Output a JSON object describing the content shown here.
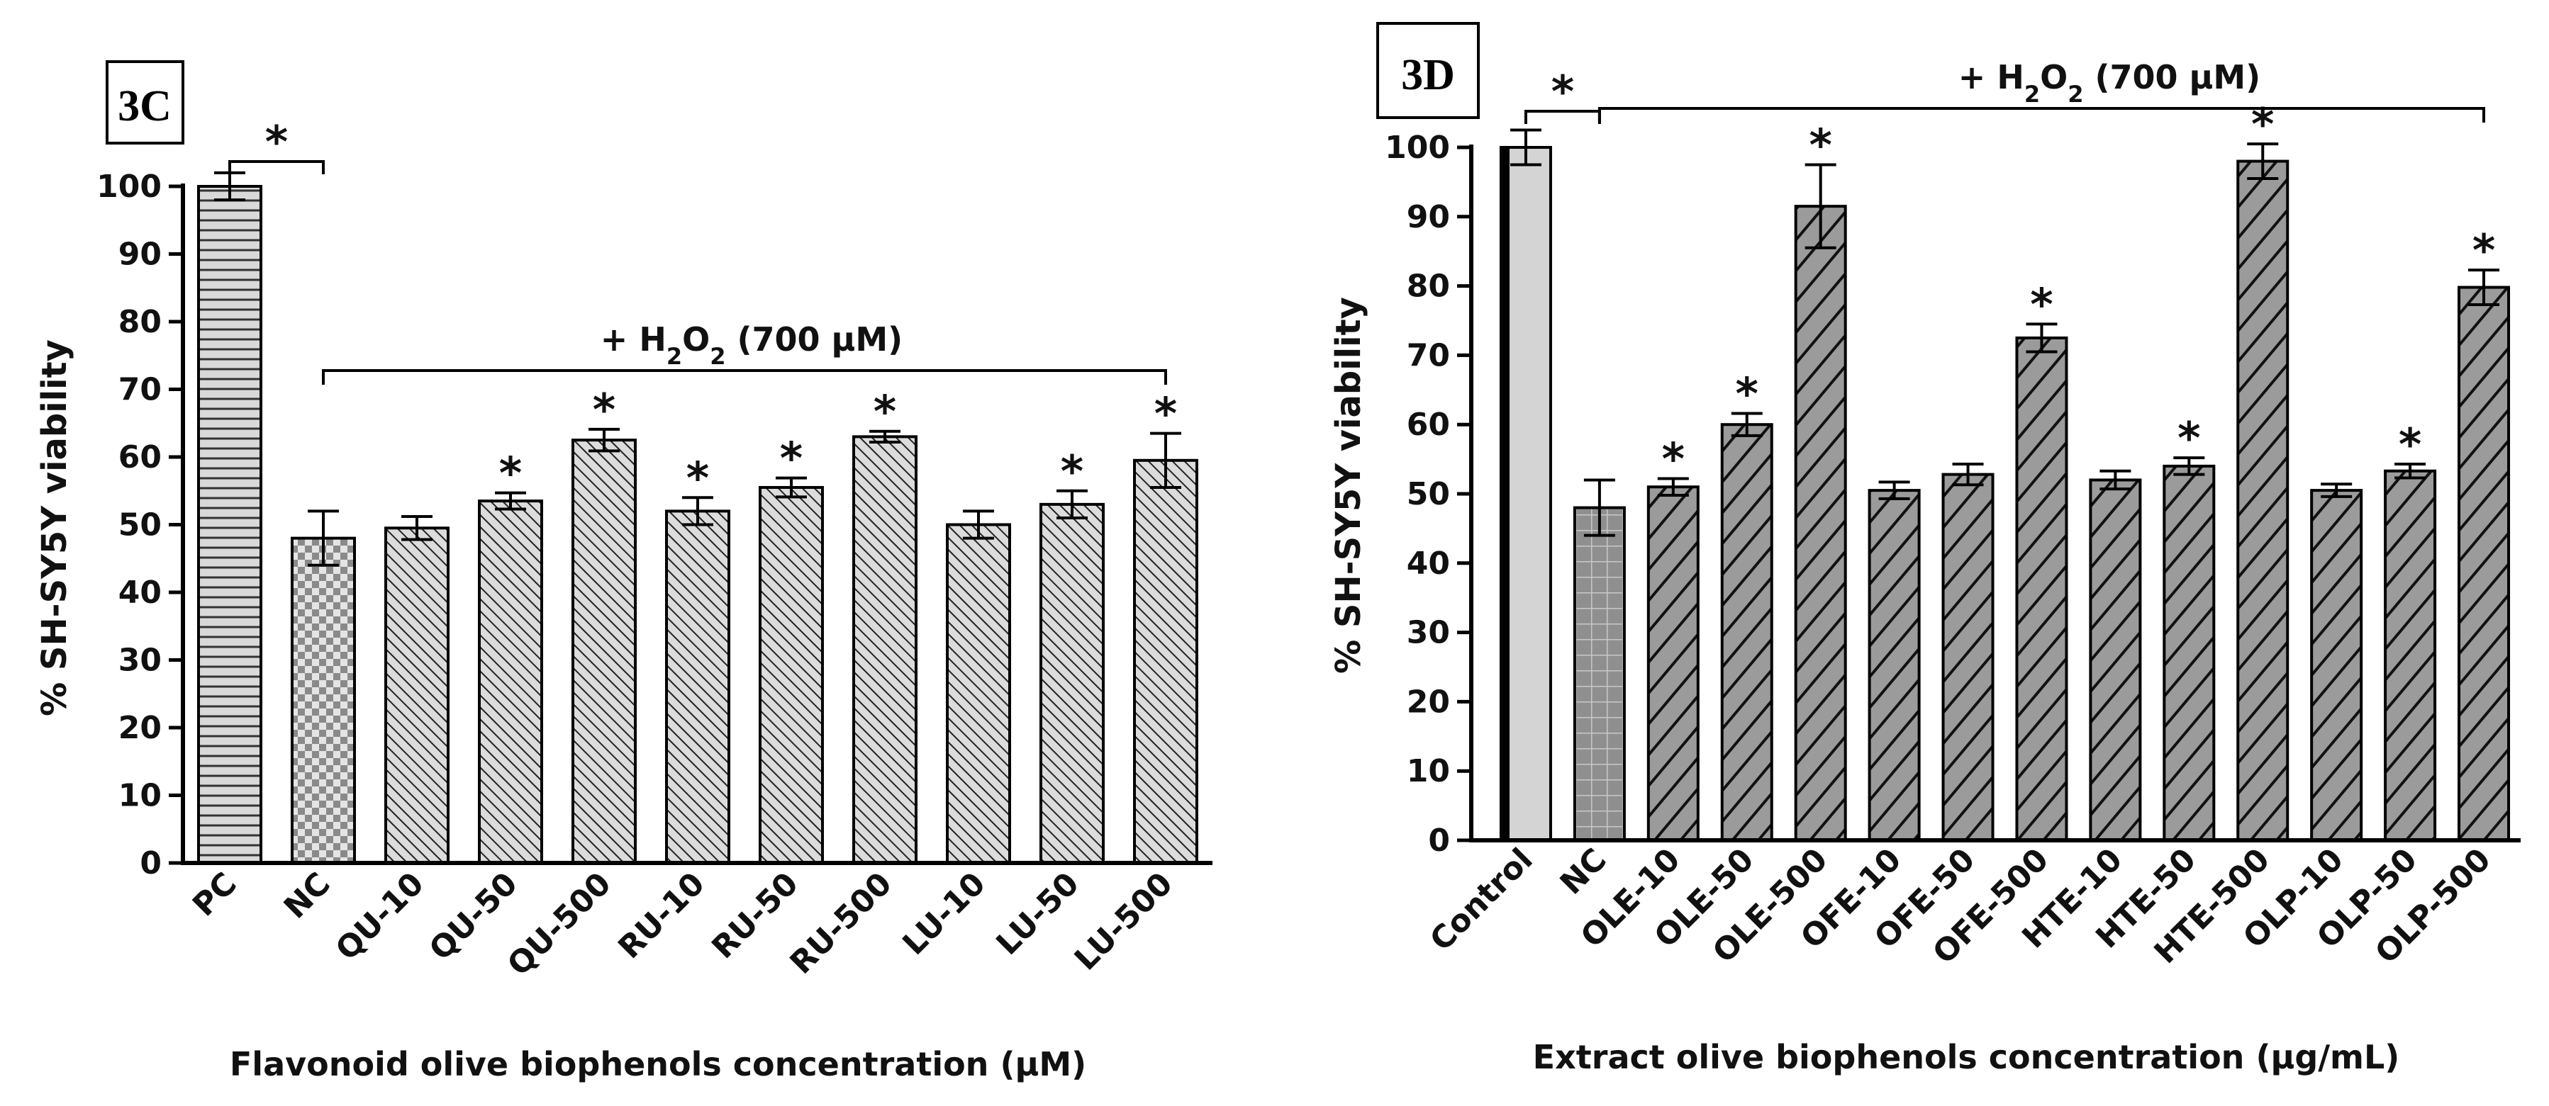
{
  "chart_data": [
    {
      "type": "bar",
      "panel": "3C",
      "title": "",
      "xlabel": "Flavonoid olive biophenols concentration (µM)",
      "ylabel": "% SH-SY5Y viability",
      "ylim": [
        0,
        100
      ],
      "yticks": [
        "0",
        "10",
        "20",
        "30",
        "40",
        "50",
        "60",
        "70",
        "80",
        "90",
        "100"
      ],
      "treatment_label_main": "+ H",
      "treatment_label_sub": "2",
      "treatment_label_o": "O",
      "treatment_label_rest": " (700 µM)",
      "categories": [
        "PC",
        "NC",
        "QU-10",
        "QU-50",
        "QU-500",
        "RU-10",
        "RU-50",
        "RU-500",
        "LU-10",
        "LU-50",
        "LU-500"
      ],
      "values": [
        100,
        48,
        49.5,
        53.5,
        62.5,
        52,
        55.5,
        63,
        50,
        53,
        59.5
      ],
      "errors": [
        2,
        4,
        1.7,
        1.2,
        1.6,
        2,
        1.4,
        0.8,
        2,
        2,
        4
      ],
      "significant": [
        false,
        false,
        false,
        true,
        true,
        true,
        true,
        true,
        false,
        true,
        true
      ],
      "star": "*",
      "control_star": "*"
    },
    {
      "type": "bar",
      "panel": "3D",
      "title": "",
      "xlabel": "Extract olive biophenols concentration (µg/mL)",
      "ylabel": "% SH-SY5Y viability",
      "ylim": [
        0,
        100
      ],
      "yticks": [
        "0",
        "10",
        "20",
        "30",
        "40",
        "50",
        "60",
        "70",
        "80",
        "90",
        "100"
      ],
      "treatment_label_main": "+ H",
      "treatment_label_sub": "2",
      "treatment_label_o": "O",
      "treatment_label_rest": " (700 µM)",
      "categories": [
        "Control",
        "NC",
        "OLE-10",
        "OLE-50",
        "OLE-500",
        "OFE-10",
        "OFE-50",
        "OFE-500",
        "HTE-10",
        "HTE-50",
        "HTE-500",
        "OLP-10",
        "OLP-50",
        "OLP-500"
      ],
      "values": [
        100,
        48,
        51,
        60,
        91.5,
        50.5,
        52.8,
        72.5,
        52,
        54,
        98,
        50.5,
        53.3,
        79.8
      ],
      "errors": [
        2.5,
        4,
        1.2,
        1.6,
        6,
        1.2,
        1.5,
        2,
        1.3,
        1.2,
        2.5,
        0.9,
        1,
        2.5
      ],
      "significant": [
        false,
        false,
        true,
        true,
        true,
        false,
        false,
        true,
        false,
        true,
        true,
        false,
        true,
        true
      ],
      "star": "*",
      "control_star": "*"
    }
  ]
}
